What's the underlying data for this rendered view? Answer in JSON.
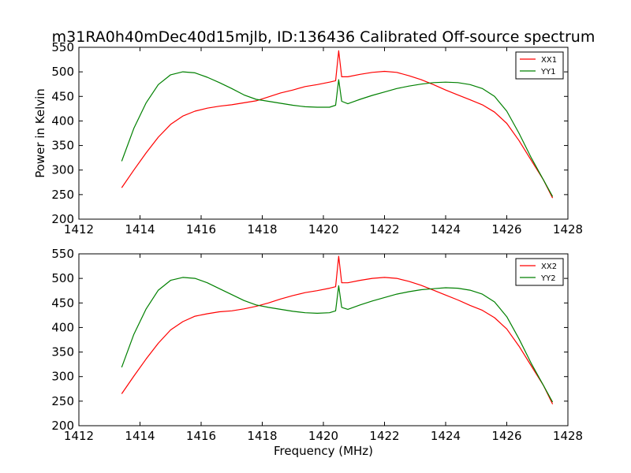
{
  "figure": {
    "title": "m31RA0h40mDec40d15mjlb, ID:136436 Calibrated Off-source spectrum"
  },
  "chart_data": [
    {
      "type": "line",
      "title": "m31RA0h40mDec40d15mjlb, ID:136436 Calibrated Off-source spectrum",
      "xlabel": "",
      "ylabel": "Power in Kelvin",
      "xlim": [
        1412,
        1428
      ],
      "ylim": [
        200,
        550
      ],
      "xticks": [
        1412,
        1414,
        1416,
        1418,
        1420,
        1422,
        1424,
        1426,
        1428
      ],
      "yticks": [
        200,
        250,
        300,
        350,
        400,
        450,
        500,
        550
      ],
      "grid": false,
      "legend": "top-right",
      "x": [
        1413.4,
        1413.8,
        1414.2,
        1414.6,
        1415.0,
        1415.4,
        1415.8,
        1416.2,
        1416.6,
        1417.0,
        1417.4,
        1417.8,
        1418.2,
        1418.6,
        1419.0,
        1419.4,
        1419.8,
        1420.2,
        1420.4,
        1420.5,
        1420.6,
        1420.8,
        1421.2,
        1421.6,
        1422.0,
        1422.4,
        1422.8,
        1423.2,
        1423.6,
        1424.0,
        1424.4,
        1424.8,
        1425.2,
        1425.6,
        1426.0,
        1426.4,
        1426.8,
        1427.2,
        1427.5
      ],
      "series": [
        {
          "name": "XX1",
          "color": "#ff0000",
          "values": [
            264,
            300,
            335,
            367,
            393,
            410,
            420,
            426,
            430,
            433,
            437,
            441,
            449,
            457,
            463,
            470,
            474,
            479,
            482,
            543,
            490,
            490,
            495,
            499,
            501,
            499,
            492,
            484,
            474,
            463,
            453,
            443,
            433,
            418,
            395,
            360,
            320,
            280,
            243
          ]
        },
        {
          "name": "YY1",
          "color": "#008000",
          "values": [
            318,
            385,
            437,
            474,
            494,
            500,
            498,
            489,
            478,
            466,
            453,
            444,
            440,
            436,
            432,
            429,
            428,
            428,
            432,
            484,
            440,
            435,
            444,
            452,
            459,
            466,
            471,
            475,
            478,
            479,
            478,
            474,
            466,
            450,
            420,
            375,
            325,
            280,
            246
          ]
        }
      ]
    },
    {
      "type": "line",
      "title": "",
      "xlabel": "Frequency (MHz)",
      "ylabel": "",
      "xlim": [
        1412,
        1428
      ],
      "ylim": [
        200,
        550
      ],
      "xticks": [
        1412,
        1414,
        1416,
        1418,
        1420,
        1422,
        1424,
        1426,
        1428
      ],
      "yticks": [
        200,
        250,
        300,
        350,
        400,
        450,
        500,
        550
      ],
      "grid": false,
      "legend": "top-right",
      "x": [
        1413.4,
        1413.8,
        1414.2,
        1414.6,
        1415.0,
        1415.4,
        1415.8,
        1416.2,
        1416.6,
        1417.0,
        1417.4,
        1417.8,
        1418.2,
        1418.6,
        1419.0,
        1419.4,
        1419.8,
        1420.2,
        1420.4,
        1420.5,
        1420.6,
        1420.8,
        1421.2,
        1421.6,
        1422.0,
        1422.4,
        1422.8,
        1423.2,
        1423.6,
        1424.0,
        1424.4,
        1424.8,
        1425.2,
        1425.6,
        1426.0,
        1426.4,
        1426.8,
        1427.2,
        1427.5
      ],
      "series": [
        {
          "name": "XX2",
          "color": "#ff0000",
          "values": [
            265,
            301,
            336,
            368,
            395,
            412,
            423,
            428,
            432,
            434,
            438,
            443,
            450,
            458,
            465,
            471,
            475,
            480,
            483,
            545,
            491,
            491,
            496,
            500,
            502,
            500,
            494,
            486,
            476,
            466,
            456,
            445,
            435,
            420,
            397,
            362,
            322,
            282,
            244
          ]
        },
        {
          "name": "YY2",
          "color": "#008000",
          "values": [
            319,
            386,
            438,
            476,
            496,
            502,
            500,
            491,
            479,
            467,
            455,
            446,
            441,
            437,
            433,
            430,
            429,
            430,
            434,
            485,
            441,
            437,
            446,
            454,
            461,
            468,
            473,
            477,
            479,
            481,
            480,
            476,
            468,
            452,
            422,
            377,
            327,
            282,
            248
          ]
        }
      ]
    }
  ]
}
